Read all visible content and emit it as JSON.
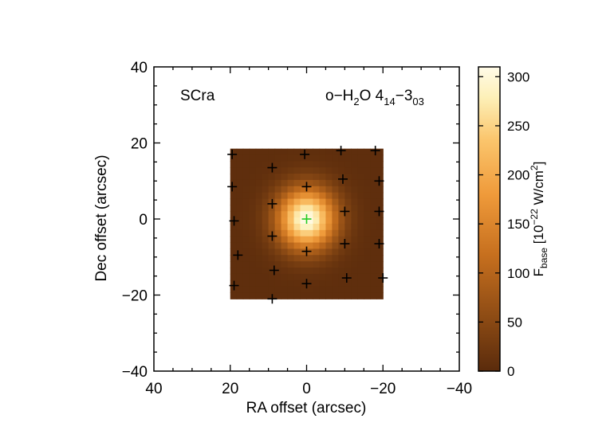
{
  "chart_data": {
    "type": "heatmap",
    "source_label": "SCra",
    "line_label": {
      "prefix": "o−H",
      "sub1": "2",
      "mid": "O 4",
      "sub2": "14",
      "dash": "−3",
      "sub3": "03"
    },
    "xlabel": "RA offset (arcsec)",
    "ylabel": "Dec offset (arcsec)",
    "xlim": [
      40,
      -40
    ],
    "ylim": [
      -40,
      40
    ],
    "x_ticks": [
      40,
      20,
      0,
      -20,
      -40
    ],
    "y_ticks": [
      40,
      20,
      0,
      -20,
      -40
    ],
    "x_tick_labels": [
      "40",
      "20",
      "0",
      "−20",
      "−40"
    ],
    "y_tick_labels": [
      "40",
      "20",
      "0",
      "−20",
      "−40"
    ],
    "map_extent": {
      "ra": [
        20,
        -20
      ],
      "dec": [
        -21,
        18.5
      ]
    },
    "emission_peak": {
      "ra": 0,
      "dec": 0,
      "value": 310
    },
    "background_value": 5,
    "colorbar": {
      "range": [
        0,
        310
      ],
      "ticks": [
        0,
        50,
        100,
        150,
        200,
        250,
        300
      ],
      "tick_labels": [
        "0",
        "50",
        "100",
        "150",
        "200",
        "250",
        "300"
      ],
      "label": {
        "f": "F",
        "sub": "base",
        "open": " [10",
        "sup": "−22",
        "unit": " W/cm",
        "sup2": "2",
        "close": "]"
      },
      "colormap": [
        "#5a2b0c",
        "#8b4a14",
        "#c66f1e",
        "#ef9a3a",
        "#fbc56c",
        "#fdf0b8",
        "#fffbe8"
      ]
    },
    "spaxels": [
      [
        19.5,
        17
      ],
      [
        9,
        13.5
      ],
      [
        0.5,
        17
      ],
      [
        -9,
        18
      ],
      [
        -18,
        18
      ],
      [
        19.5,
        8.5
      ],
      [
        -9.5,
        10.5
      ],
      [
        -19,
        10
      ],
      [
        9,
        4
      ],
      [
        0,
        8.5
      ],
      [
        -10,
        2
      ],
      [
        -19,
        2
      ],
      [
        19,
        -0.5
      ],
      [
        0,
        0
      ],
      [
        9,
        -4.5
      ],
      [
        0,
        -8.5
      ],
      [
        -10,
        -6.5
      ],
      [
        -19,
        -6.5
      ],
      [
        18,
        -9.5
      ],
      [
        8.5,
        -13.5
      ],
      [
        -10.5,
        -15.5
      ],
      [
        -20,
        -15.5
      ],
      [
        19,
        -17.5
      ],
      [
        0,
        -17
      ],
      [
        9,
        -21
      ]
    ],
    "center_marker": {
      "ra": 0,
      "dec": 0,
      "color": "#22cc22"
    },
    "spaxel_marker_color": "#000000"
  }
}
